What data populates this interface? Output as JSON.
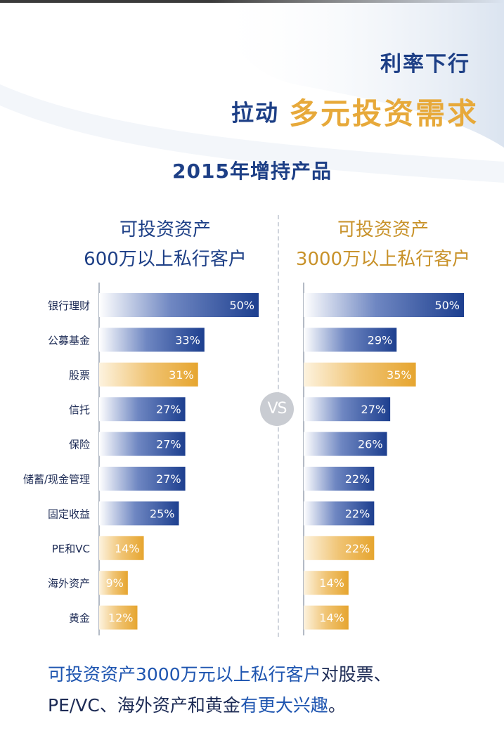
{
  "header": {
    "title_line1": "利率下行",
    "title_prefix": "拉动",
    "title_main": "多元投资需求",
    "subtitle": "2015年增持产品"
  },
  "colors": {
    "navy": "#1d3f86",
    "gold": "#e7a93a",
    "bar_blue": "#1d3f8f",
    "bar_gold": "#e6a52f"
  },
  "left_header": {
    "line1": "可投资资产",
    "line2": "600万以上私行客户"
  },
  "right_header": {
    "line1": "可投资资产",
    "line2": "3000万以上私行客户"
  },
  "vs_label": "VS",
  "chart_data": {
    "type": "bar",
    "orientation": "horizontal",
    "title": "2015年增持产品",
    "categories": [
      "银行理财",
      "公募基金",
      "股票",
      "信托",
      "保险",
      "储蓄/现金管理",
      "固定收益",
      "PE和VC",
      "海外资产",
      "黄金"
    ],
    "highlight": [
      false,
      false,
      true,
      false,
      false,
      false,
      false,
      true,
      true,
      true
    ],
    "series": [
      {
        "name": "可投资资产600万以上私行客户",
        "values": [
          50,
          33,
          31,
          27,
          27,
          27,
          25,
          14,
          9,
          12
        ],
        "labels": [
          "50%",
          "33%",
          "31%",
          "27%",
          "27%",
          "27%",
          "25%",
          "14%",
          "9%",
          "12%"
        ]
      },
      {
        "name": "可投资资产3000万以上私行客户",
        "values": [
          50,
          29,
          35,
          27,
          26,
          22,
          22,
          22,
          14,
          14
        ],
        "labels": [
          "50%",
          "29%",
          "35%",
          "27%",
          "26%",
          "22%",
          "22%",
          "22%",
          "14%",
          "14%"
        ]
      }
    ],
    "xlim": [
      0,
      50
    ],
    "unit": "%"
  },
  "footer": {
    "h1": "可投资资产3000万元以上私行客户",
    "n1": "对股票、",
    "n2": "PE/VC、海外资产和黄金",
    "h2": "有更大兴趣",
    "n3": "。"
  }
}
